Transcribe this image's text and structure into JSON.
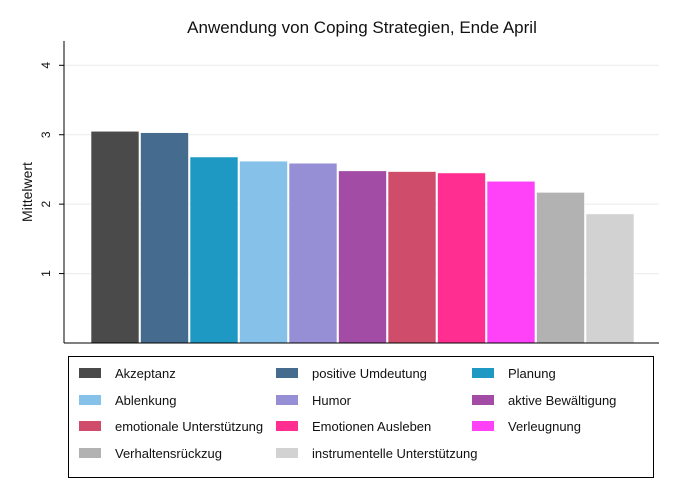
{
  "chart_data": {
    "type": "bar",
    "title": "Anwendung von Coping Strategien, Ende April",
    "xlabel": "",
    "ylabel": "Mittelwert",
    "ylim": [
      0,
      4.35
    ],
    "yticks": [
      1,
      2,
      3,
      4
    ],
    "grid": true,
    "legend_position": "bottom",
    "categories": [
      "Akzeptanz",
      "positive Umdeutung",
      "Planung",
      "Ablenkung",
      "Humor",
      "aktive Bewältigung",
      "emotionale Unterstützung",
      "Emotionen Ausleben",
      "Verleugnung",
      "Verhaltensrückzug",
      "instrumentelle Unterstützung"
    ],
    "values": [
      3.05,
      3.03,
      2.68,
      2.62,
      2.59,
      2.48,
      2.47,
      2.45,
      2.33,
      2.17,
      1.86
    ],
    "colors": [
      "#4a4a4a",
      "#456b8f",
      "#1d99c4",
      "#86c1ea",
      "#978fd6",
      "#a34ca6",
      "#cf4d6b",
      "#ff2e90",
      "#ff41f8",
      "#b2b2b2",
      "#d2d2d2"
    ]
  }
}
